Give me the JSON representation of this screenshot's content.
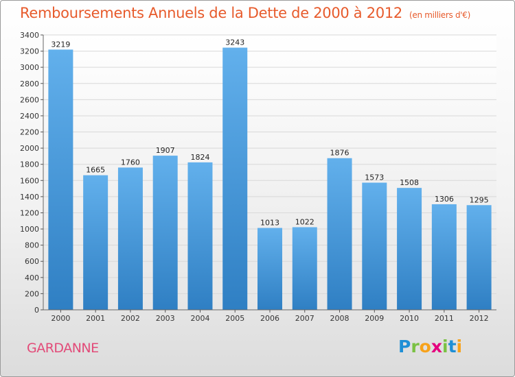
{
  "title": "Remboursements Annuels de la Dette de 2000 à 2012",
  "subtitle": "(en milliers d'€)",
  "city": "GARDANNE",
  "logo": {
    "letters": [
      {
        "char": "P",
        "color": "#1e8fd6"
      },
      {
        "char": "r",
        "color": "#7ac143"
      },
      {
        "char": "o",
        "color": "#f7a21b"
      },
      {
        "char": "x",
        "color": "#e5007e"
      },
      {
        "char": "i",
        "color": "#7ac143"
      },
      {
        "char": "t",
        "color": "#1e8fd6"
      },
      {
        "char": "i",
        "color": "#f7a21b"
      }
    ]
  },
  "colors": {
    "title": "#e75a2b",
    "city": "#e24a78",
    "bar_top": "#62b0ec",
    "bar_bottom": "#2f7fc3",
    "grid": "#d8d8d8"
  },
  "chart_data": {
    "type": "bar",
    "categories": [
      "2000",
      "2001",
      "2002",
      "2003",
      "2004",
      "2005",
      "2006",
      "2007",
      "2008",
      "2009",
      "2010",
      "2011",
      "2012"
    ],
    "values": [
      3219,
      1665,
      1760,
      1907,
      1824,
      3243,
      1013,
      1022,
      1876,
      1573,
      1508,
      1306,
      1295
    ],
    "ylim": [
      0,
      3400
    ],
    "yticks": [
      0,
      200,
      400,
      600,
      800,
      1000,
      1200,
      1400,
      1600,
      1800,
      2000,
      2200,
      2400,
      2600,
      2800,
      3000,
      3200,
      3400
    ],
    "grid": true,
    "data_labels": true
  }
}
